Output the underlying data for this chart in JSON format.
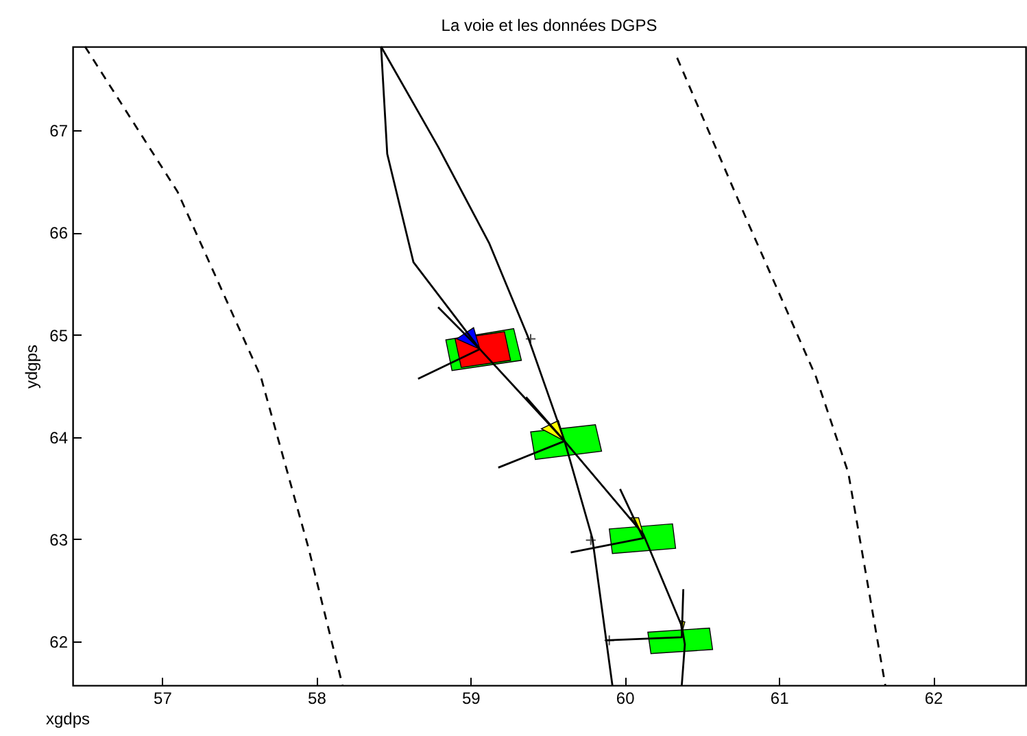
{
  "chart_data": {
    "type": "line",
    "title": "La voie et les données DGPS",
    "xlabel": "xgdps",
    "ylabel": "ydgps",
    "xlim": [
      56.42,
      62.6
    ],
    "ylim": [
      61.57,
      67.82
    ],
    "xticks": [
      57,
      58,
      59,
      60,
      61,
      62
    ],
    "yticks": [
      62,
      63,
      64,
      65,
      66,
      67
    ],
    "marker": "none",
    "series": [
      {
        "type": "line",
        "color": "#000000",
        "line_style": "dashed",
        "x": [
          56.5,
          57.1,
          57.64,
          57.95,
          58.17
        ],
        "values": [
          67.82,
          66.4,
          64.59,
          62.91,
          61.57
        ]
      },
      {
        "type": "line",
        "color": "#000000",
        "line_style": "dashed",
        "x": [
          60.34,
          60.79,
          61.24,
          61.45,
          61.69
        ],
        "values": [
          67.71,
          66.13,
          64.59,
          63.65,
          61.57
        ]
      },
      {
        "type": "line",
        "color": "#000000",
        "line_style": "solid",
        "x": [
          58.42,
          58.46,
          58.63,
          59.06,
          59.61,
          60.12,
          60.37,
          60.39,
          60.37
        ],
        "values": [
          67.82,
          66.77,
          65.71,
          64.86,
          63.96,
          63.05,
          62.15,
          61.97,
          61.57
        ]
      },
      {
        "type": "line",
        "color": "#000000",
        "line_style": "solid",
        "x": [
          58.42,
          58.79,
          59.12,
          59.37,
          59.61,
          59.79,
          59.92
        ],
        "values": [
          67.82,
          66.84,
          65.9,
          64.99,
          63.96,
          63.01,
          61.57
        ]
      },
      {
        "type": "line",
        "color": "#000000",
        "line_style": "solid",
        "x": [
          58.79,
          59.06,
          58.66
        ],
        "values": [
          65.27,
          64.86,
          64.57
        ]
      },
      {
        "type": "line",
        "color": "#000000",
        "line_style": "solid",
        "x": [
          59.36,
          59.61,
          59.18
        ],
        "values": [
          64.39,
          63.96,
          63.7
        ]
      },
      {
        "type": "line",
        "color": "#000000",
        "line_style": "solid",
        "x": [
          59.97,
          60.12,
          59.65
        ],
        "values": [
          63.49,
          63.01,
          62.87
        ]
      },
      {
        "type": "line",
        "color": "#000000",
        "line_style": "solid",
        "x": [
          60.38,
          60.37,
          59.88
        ],
        "values": [
          62.51,
          62.04,
          62.01
        ]
      },
      {
        "type": "scatter",
        "color": "#000000",
        "marker": "cross",
        "x": [
          59.39,
          59.78,
          59.9
        ],
        "values": [
          64.96,
          62.99,
          62.01
        ]
      }
    ]
  }
}
